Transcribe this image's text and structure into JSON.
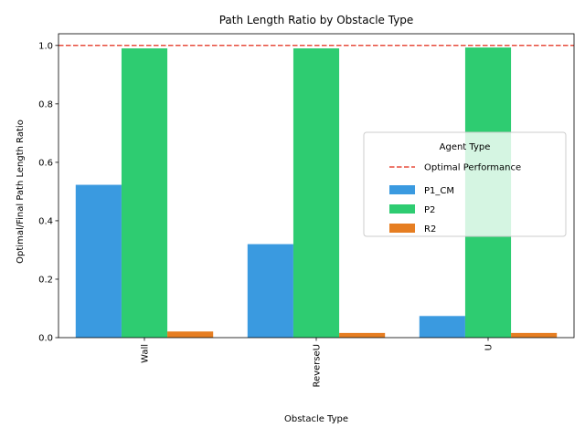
{
  "chart_data": {
    "type": "bar",
    "title": "Path Length Ratio by Obstacle Type",
    "xlabel": "Obstacle Type",
    "ylabel": "Optimal/Final Path Length Ratio",
    "categories": [
      "Wall",
      "ReverseU",
      "U"
    ],
    "series": [
      {
        "name": "P1_CM",
        "color": "#3a9ae0",
        "values": [
          0.523,
          0.32,
          0.074
        ]
      },
      {
        "name": "P2",
        "color": "#2ecc71",
        "values": [
          0.99,
          0.99,
          0.993
        ]
      },
      {
        "name": "R2",
        "color": "#e67e22",
        "values": [
          0.021,
          0.016,
          0.016
        ]
      }
    ],
    "ylim": [
      0,
      1.04
    ],
    "yticks": [
      0.0,
      0.2,
      0.4,
      0.6,
      0.8,
      1.0
    ],
    "ytick_labels": [
      "0.0",
      "0.2",
      "0.4",
      "0.6",
      "0.8",
      "1.0"
    ],
    "reference_line": {
      "label": "Optimal Performance",
      "value": 1.0,
      "color": "#e74c3c",
      "style": "dashed"
    },
    "legend": {
      "title": "Agent Type",
      "position": "center-right"
    }
  }
}
